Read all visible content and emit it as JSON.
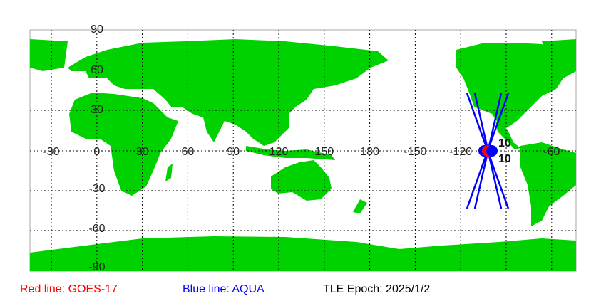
{
  "map": {
    "lon_labels": [
      "-30",
      "0",
      "30",
      "60",
      "90",
      "120",
      "150",
      "180",
      "-150",
      "-120",
      "-60"
    ],
    "lat_labels": [
      "90",
      "60",
      "30",
      "-30",
      "-60",
      "-90"
    ],
    "land_color": "#00d200",
    "satellite_labels": [
      "10",
      "10"
    ]
  },
  "legend": {
    "red": "Red line: GOES-17",
    "blue": "Blue line: AQUA",
    "epoch": "TLE Epoch: 2025/1/2",
    "red_color": "#ff0000",
    "blue_color": "#0000ff"
  }
}
